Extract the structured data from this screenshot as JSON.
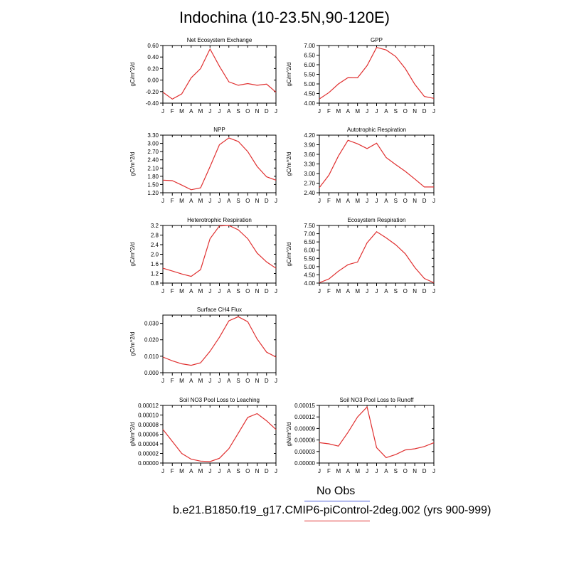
{
  "title": "Indochina (10-23.5N,90-120E)",
  "legend": {
    "obs_label": "No Obs",
    "obs_color": "#4a5bd8",
    "model_label": "b.e21.B1850.f19_g17.CMIP6-piControl-2deg.002 (yrs 900-999)",
    "model_color": "#e03030"
  },
  "chart_data": [
    {
      "type": "line",
      "title": "Net Ecosystem Exchange",
      "ylabel": "gC/m^2/d",
      "categories": [
        "J",
        "F",
        "M",
        "A",
        "M",
        "J",
        "J",
        "A",
        "S",
        "O",
        "N",
        "D",
        "J"
      ],
      "ylim": [
        -0.4,
        0.6
      ],
      "yticks": [
        "0.60",
        "0.40",
        "0.20",
        "0.00",
        "-0.20",
        "-0.40"
      ],
      "series": [
        {
          "values": [
            -0.21,
            -0.33,
            -0.24,
            0.04,
            0.2,
            0.54,
            0.24,
            -0.03,
            -0.09,
            -0.06,
            -0.09,
            -0.07,
            -0.21
          ]
        }
      ]
    },
    {
      "type": "line",
      "title": "GPP",
      "ylabel": "gC/m^2/d",
      "categories": [
        "J",
        "F",
        "M",
        "A",
        "M",
        "J",
        "J",
        "A",
        "S",
        "O",
        "N",
        "D",
        "J"
      ],
      "ylim": [
        4.0,
        7.0
      ],
      "yticks": [
        "7.00",
        "6.50",
        "6.00",
        "5.50",
        "5.00",
        "4.50",
        "4.00"
      ],
      "series": [
        {
          "values": [
            4.22,
            4.55,
            5.0,
            5.33,
            5.32,
            5.95,
            6.9,
            6.77,
            6.43,
            5.8,
            4.98,
            4.35,
            4.25
          ]
        }
      ]
    },
    {
      "type": "line",
      "title": "NPP",
      "ylabel": "gC/m^2/d",
      "categories": [
        "J",
        "F",
        "M",
        "A",
        "M",
        "J",
        "J",
        "A",
        "S",
        "O",
        "N",
        "D",
        "J"
      ],
      "ylim": [
        1.2,
        3.3
      ],
      "yticks": [
        "3.30",
        "3.00",
        "2.70",
        "2.40",
        "2.10",
        "1.80",
        "1.50",
        "1.20"
      ],
      "series": [
        {
          "values": [
            1.66,
            1.64,
            1.48,
            1.31,
            1.38,
            2.15,
            2.95,
            3.2,
            3.07,
            2.7,
            2.16,
            1.78,
            1.66
          ]
        }
      ]
    },
    {
      "type": "line",
      "title": "Autotrophic Respiration",
      "ylabel": "gC/m^2/d",
      "categories": [
        "J",
        "F",
        "M",
        "A",
        "M",
        "J",
        "J",
        "A",
        "S",
        "O",
        "N",
        "D",
        "J"
      ],
      "ylim": [
        2.4,
        4.2
      ],
      "yticks": [
        "4.20",
        "3.90",
        "3.60",
        "3.30",
        "3.00",
        "2.70",
        "2.40"
      ],
      "series": [
        {
          "values": [
            2.56,
            2.95,
            3.55,
            4.04,
            3.93,
            3.78,
            3.95,
            3.5,
            3.28,
            3.07,
            2.83,
            2.58,
            2.58
          ]
        }
      ]
    },
    {
      "type": "line",
      "title": "Heterotrophic Respiration",
      "ylabel": "gC/m^2/d",
      "categories": [
        "J",
        "F",
        "M",
        "A",
        "M",
        "J",
        "J",
        "A",
        "S",
        "O",
        "N",
        "D",
        "J"
      ],
      "ylim": [
        0.8,
        3.2
      ],
      "yticks": [
        "3.2",
        "2.8",
        "2.4",
        "2.0",
        "1.6",
        "1.2",
        "0.8"
      ],
      "series": [
        {
          "values": [
            1.42,
            1.3,
            1.18,
            1.08,
            1.36,
            2.65,
            3.18,
            3.2,
            3.02,
            2.65,
            2.05,
            1.68,
            1.42
          ]
        }
      ]
    },
    {
      "type": "line",
      "title": "Ecosystem Respiration",
      "ylabel": "gC/m^2/d",
      "categories": [
        "J",
        "F",
        "M",
        "A",
        "M",
        "J",
        "J",
        "A",
        "S",
        "O",
        "N",
        "D",
        "J"
      ],
      "ylim": [
        4.0,
        7.5
      ],
      "yticks": [
        "7.50",
        "7.00",
        "6.50",
        "6.00",
        "5.50",
        "5.00",
        "4.50",
        "4.00"
      ],
      "series": [
        {
          "values": [
            4.02,
            4.25,
            4.72,
            5.12,
            5.28,
            6.45,
            7.12,
            6.75,
            6.33,
            5.78,
            4.95,
            4.28,
            4.02
          ]
        }
      ]
    },
    {
      "type": "line",
      "title": "Surface CH4 Flux",
      "ylabel": "gC/m^2/d",
      "categories": [
        "J",
        "F",
        "M",
        "A",
        "M",
        "J",
        "J",
        "A",
        "S",
        "O",
        "N",
        "D",
        "J"
      ],
      "ylim": [
        0.0,
        0.035
      ],
      "yticks": [
        "0.030",
        "0.020",
        "0.010",
        "0.000"
      ],
      "series": [
        {
          "values": [
            0.0095,
            0.0072,
            0.0054,
            0.0045,
            0.006,
            0.013,
            0.0215,
            0.0315,
            0.034,
            0.031,
            0.0205,
            0.0125,
            0.0095
          ]
        }
      ]
    },
    {
      "type": "line",
      "title": "Soil NO3 Pool Loss to Leaching",
      "ylabel": "gN/m^2/d",
      "categories": [
        "J",
        "F",
        "M",
        "A",
        "M",
        "J",
        "J",
        "A",
        "S",
        "O",
        "N",
        "D",
        "J"
      ],
      "ylim": [
        0,
        0.00012
      ],
      "yticks": [
        "0.00012",
        "0.00010",
        "0.00008",
        "0.00006",
        "0.00004",
        "0.00002",
        "0.00000"
      ],
      "series": [
        {
          "values": [
            7e-05,
            4.5e-05,
            2e-05,
            8e-06,
            4e-06,
            3e-06,
            1e-05,
            3e-05,
            6.2e-05,
            9.5e-05,
            0.000103,
            8.8e-05,
            7e-05
          ]
        }
      ]
    },
    {
      "type": "line",
      "title": "Soil NO3 Pool Loss to Runoff",
      "ylabel": "gN/m^2/d",
      "categories": [
        "J",
        "F",
        "M",
        "A",
        "M",
        "J",
        "J",
        "A",
        "S",
        "O",
        "N",
        "D",
        "J"
      ],
      "ylim": [
        0,
        0.00015
      ],
      "yticks": [
        "0.00015",
        "0.00012",
        "0.00009",
        "0.00006",
        "0.00003",
        "0.00000"
      ],
      "series": [
        {
          "values": [
            5.3e-05,
            5e-05,
            4.4e-05,
            8e-05,
            0.00012,
            0.000146,
            4e-05,
            1.4e-05,
            2.2e-05,
            3.4e-05,
            3.7e-05,
            4.3e-05,
            5.3e-05
          ]
        }
      ]
    }
  ]
}
